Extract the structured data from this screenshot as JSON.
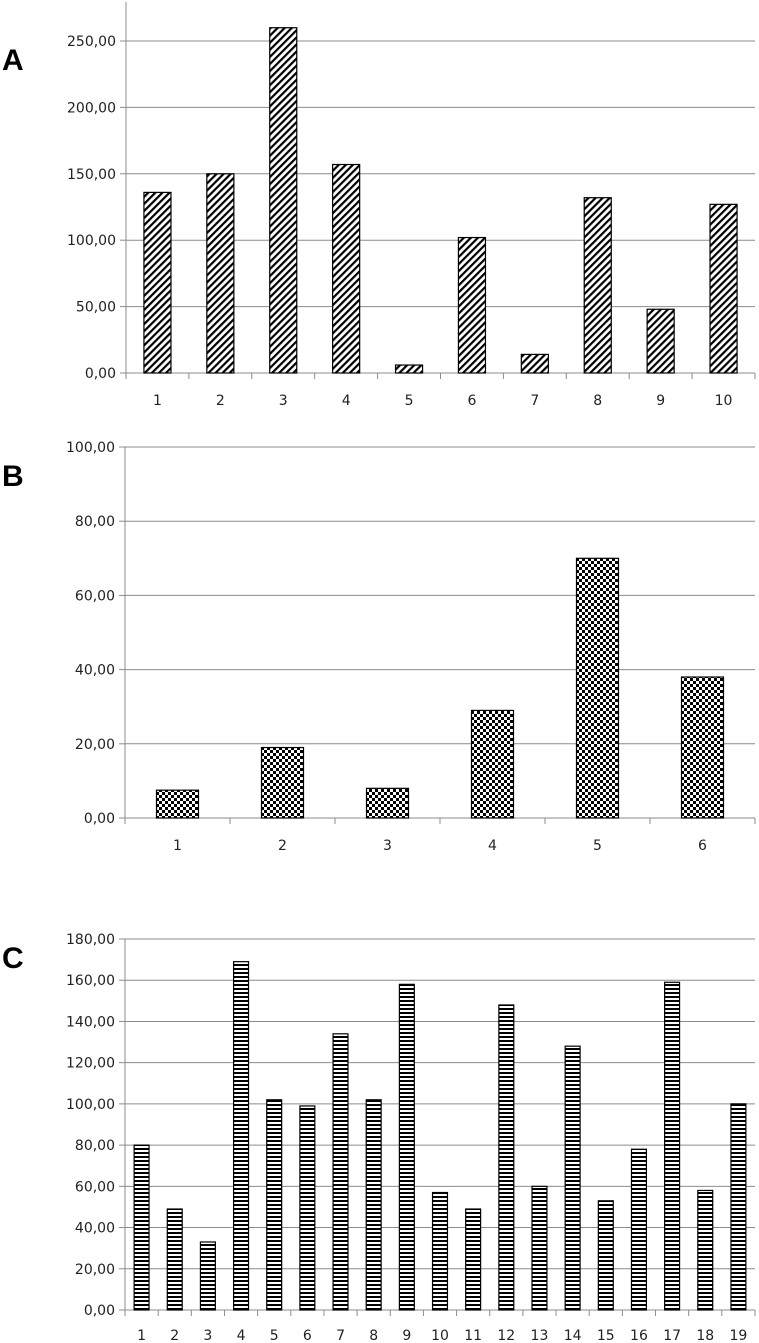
{
  "chart_data": [
    {
      "panel": "A",
      "type": "bar",
      "pattern": "diagonal",
      "categories": [
        "1",
        "2",
        "3",
        "4",
        "5",
        "6",
        "7",
        "8",
        "9",
        "10"
      ],
      "values": [
        136,
        150,
        260,
        157,
        6,
        102,
        14,
        132,
        48,
        127
      ],
      "ylim": [
        0,
        250
      ],
      "ticks": [
        "0,00",
        "50,00",
        "100,00",
        "150,00",
        "200,00",
        "250,00"
      ],
      "grid": true
    },
    {
      "panel": "B",
      "type": "bar",
      "pattern": "checkerboard",
      "categories": [
        "1",
        "2",
        "3",
        "4",
        "5",
        "6"
      ],
      "values": [
        7.5,
        19,
        8,
        29,
        70,
        38
      ],
      "ylim": [
        0,
        100
      ],
      "ticks": [
        "0,00",
        "20,00",
        "40,00",
        "60,00",
        "80,00",
        "100,00"
      ],
      "grid": true
    },
    {
      "panel": "C",
      "type": "bar",
      "pattern": "horizontal-stripes",
      "categories": [
        "1",
        "2",
        "3",
        "4",
        "5",
        "6",
        "7",
        "8",
        "9",
        "10",
        "11",
        "12",
        "13",
        "14",
        "15",
        "16",
        "17",
        "18",
        "19"
      ],
      "values": [
        80,
        49,
        33,
        169,
        102,
        99,
        134,
        102,
        158,
        57,
        49,
        148,
        60,
        128,
        53,
        78,
        159,
        58,
        100
      ],
      "ylim": [
        0,
        180
      ],
      "ticks": [
        "0,00",
        "20,00",
        "40,00",
        "60,00",
        "80,00",
        "100,00",
        "120,00",
        "140,00",
        "160,00",
        "180,00"
      ],
      "grid": true
    }
  ]
}
